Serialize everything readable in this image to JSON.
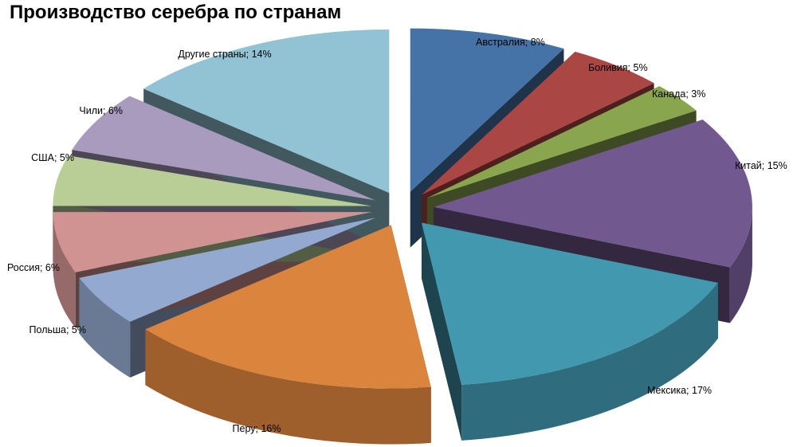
{
  "chart_data": {
    "type": "pie",
    "title": "Производство серебра по странам",
    "slices": [
      {
        "name": "Австралия",
        "value": 8,
        "label": "Австралия; 8%",
        "color": "#4572A7"
      },
      {
        "name": "Боливия",
        "value": 5,
        "label": "Боливия; 5%",
        "color": "#AA4643"
      },
      {
        "name": "Канада",
        "value": 3,
        "label": "Канада; 3%",
        "color": "#89A54E"
      },
      {
        "name": "Китай",
        "value": 15,
        "label": "Китай; 15%",
        "color": "#71588F"
      },
      {
        "name": "Мексика",
        "value": 17,
        "label": "Мексика; 17%",
        "color": "#4198AF"
      },
      {
        "name": "Перу",
        "value": 16,
        "label": "Перу; 16%",
        "color": "#DB843D"
      },
      {
        "name": "Польша",
        "value": 5,
        "label": "Польша; 5%",
        "color": "#93A9CF"
      },
      {
        "name": "Россия",
        "value": 6,
        "label": "Россия; 6%",
        "color": "#D19392"
      },
      {
        "name": "США",
        "value": 5,
        "label": "США; 5%",
        "color": "#B9CD96"
      },
      {
        "name": "Чили",
        "value": 6,
        "label": "Чили; 6%",
        "color": "#A99BBD"
      },
      {
        "name": "Другие страны",
        "value": 14,
        "label": "Другие страны; 14%",
        "color": "#92C3D4"
      }
    ]
  }
}
